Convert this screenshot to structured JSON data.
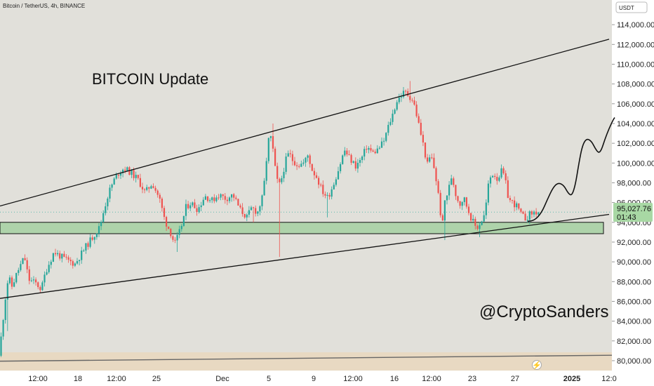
{
  "chart_data": {
    "type": "candlestick",
    "symbol": "Bitcoin / TetherUS, 4h, BINANCE",
    "currency": "USDT",
    "title": "BITCOIN Update",
    "author": "@CryptoSanders",
    "current_price": "95,027.76",
    "countdown": "01:43",
    "ylim": [
      79000,
      116000
    ],
    "y_ticks": [
      "80,000.00",
      "82,000.00",
      "84,000.00",
      "86,000.00",
      "88,000.00",
      "90,000.00",
      "92,000.00",
      "94,000.00",
      "96,000.00",
      "98,000.00",
      "100,000.00",
      "102,000.00",
      "104,000.00",
      "106,000.00",
      "108,000.00",
      "110,000.00",
      "112,000.00",
      "114,000.00"
    ],
    "x_ticks": [
      "12:00",
      "18",
      "12:00",
      "25",
      "Dec",
      "5",
      "9",
      "12:00",
      "16",
      "12:00",
      "23",
      "27",
      "2025",
      "12:0"
    ],
    "bold_x_ticks": [
      "2025"
    ],
    "price_path": [
      [
        0,
        80500
      ],
      [
        5,
        82500
      ],
      [
        10,
        86000
      ],
      [
        15,
        88500
      ],
      [
        20,
        87500
      ],
      [
        28,
        89000
      ],
      [
        38,
        90500
      ],
      [
        44,
        88200
      ],
      [
        55,
        87800
      ],
      [
        62,
        87200
      ],
      [
        68,
        89000
      ],
      [
        80,
        91000
      ],
      [
        95,
        90300
      ],
      [
        110,
        89800
      ],
      [
        125,
        91500
      ],
      [
        135,
        92500
      ],
      [
        145,
        93500
      ],
      [
        152,
        95500
      ],
      [
        158,
        97000
      ],
      [
        165,
        98200
      ],
      [
        172,
        99000
      ],
      [
        180,
        99500
      ],
      [
        190,
        99000
      ],
      [
        200,
        98300
      ],
      [
        210,
        97000
      ],
      [
        220,
        98000
      ],
      [
        230,
        96500
      ],
      [
        238,
        94200
      ],
      [
        246,
        93000
      ],
      [
        252,
        91800
      ],
      [
        258,
        92800
      ],
      [
        263,
        94000
      ],
      [
        268,
        95500
      ],
      [
        275,
        96000
      ],
      [
        285,
        95300
      ],
      [
        295,
        96700
      ],
      [
        305,
        96200
      ],
      [
        315,
        96800
      ],
      [
        325,
        96400
      ],
      [
        335,
        96800
      ],
      [
        345,
        95300
      ],
      [
        355,
        94500
      ],
      [
        362,
        95500
      ],
      [
        370,
        95000
      ],
      [
        378,
        96700
      ],
      [
        383,
        100500
      ],
      [
        387,
        103000
      ],
      [
        391,
        102000
      ],
      [
        395,
        99500
      ],
      [
        400,
        97500
      ],
      [
        405,
        98600
      ],
      [
        410,
        100200
      ],
      [
        415,
        101000
      ],
      [
        420,
        100300
      ],
      [
        428,
        99800
      ],
      [
        436,
        100000
      ],
      [
        442,
        100800
      ],
      [
        448,
        99300
      ],
      [
        455,
        98500
      ],
      [
        462,
        97200
      ],
      [
        470,
        96500
      ],
      [
        478,
        97800
      ],
      [
        486,
        99500
      ],
      [
        494,
        101300
      ],
      [
        502,
        100400
      ],
      [
        510,
        99700
      ],
      [
        518,
        100400
      ],
      [
        526,
        101700
      ],
      [
        534,
        101000
      ],
      [
        542,
        101400
      ],
      [
        550,
        102200
      ],
      [
        557,
        103800
      ],
      [
        563,
        105000
      ],
      [
        568,
        106200
      ],
      [
        574,
        106800
      ],
      [
        580,
        107200
      ],
      [
        586,
        106800
      ],
      [
        592,
        106300
      ],
      [
        597,
        104800
      ],
      [
        602,
        103200
      ],
      [
        607,
        101600
      ],
      [
        612,
        99800
      ],
      [
        617,
        100800
      ],
      [
        622,
        99400
      ],
      [
        626,
        97700
      ],
      [
        630,
        95600
      ],
      [
        633,
        93200
      ],
      [
        637,
        96200
      ],
      [
        642,
        97200
      ],
      [
        647,
        98800
      ],
      [
        652,
        97000
      ],
      [
        658,
        95800
      ],
      [
        664,
        96500
      ],
      [
        670,
        95300
      ],
      [
        676,
        94200
      ],
      [
        682,
        93400
      ],
      [
        688,
        94000
      ],
      [
        694,
        94800
      ],
      [
        700,
        98300
      ],
      [
        706,
        99000
      ],
      [
        712,
        98400
      ],
      [
        718,
        99200
      ],
      [
        722,
        98600
      ],
      [
        728,
        96300
      ],
      [
        734,
        96000
      ],
      [
        740,
        95600
      ],
      [
        746,
        94700
      ],
      [
        752,
        94400
      ],
      [
        758,
        94800
      ],
      [
        764,
        95000
      ]
    ],
    "spikes": [
      [
        398,
        90500
      ],
      [
        388,
        104000
      ],
      [
        584,
        108300
      ],
      [
        633,
        92200
      ],
      [
        683,
        92500
      ],
      [
        250,
        91000
      ],
      [
        8,
        83000
      ],
      [
        360,
        94000
      ],
      [
        464,
        94500
      ]
    ],
    "projection": [
      [
        752,
        94100
      ],
      [
        762,
        94200
      ],
      [
        772,
        95000
      ],
      [
        780,
        96300
      ],
      [
        788,
        97500
      ],
      [
        795,
        98000
      ],
      [
        803,
        97800
      ],
      [
        810,
        96900
      ],
      [
        815,
        96700
      ],
      [
        820,
        97800
      ],
      [
        825,
        100000
      ],
      [
        830,
        101800
      ],
      [
        836,
        102500
      ],
      [
        843,
        102200
      ],
      [
        848,
        101500
      ],
      [
        853,
        101000
      ],
      [
        857,
        101300
      ],
      [
        862,
        102400
      ],
      [
        868,
        103500
      ],
      [
        874,
        104400
      ],
      [
        876,
        104600
      ]
    ]
  },
  "icons": {
    "lightning_icon": "⚡"
  }
}
